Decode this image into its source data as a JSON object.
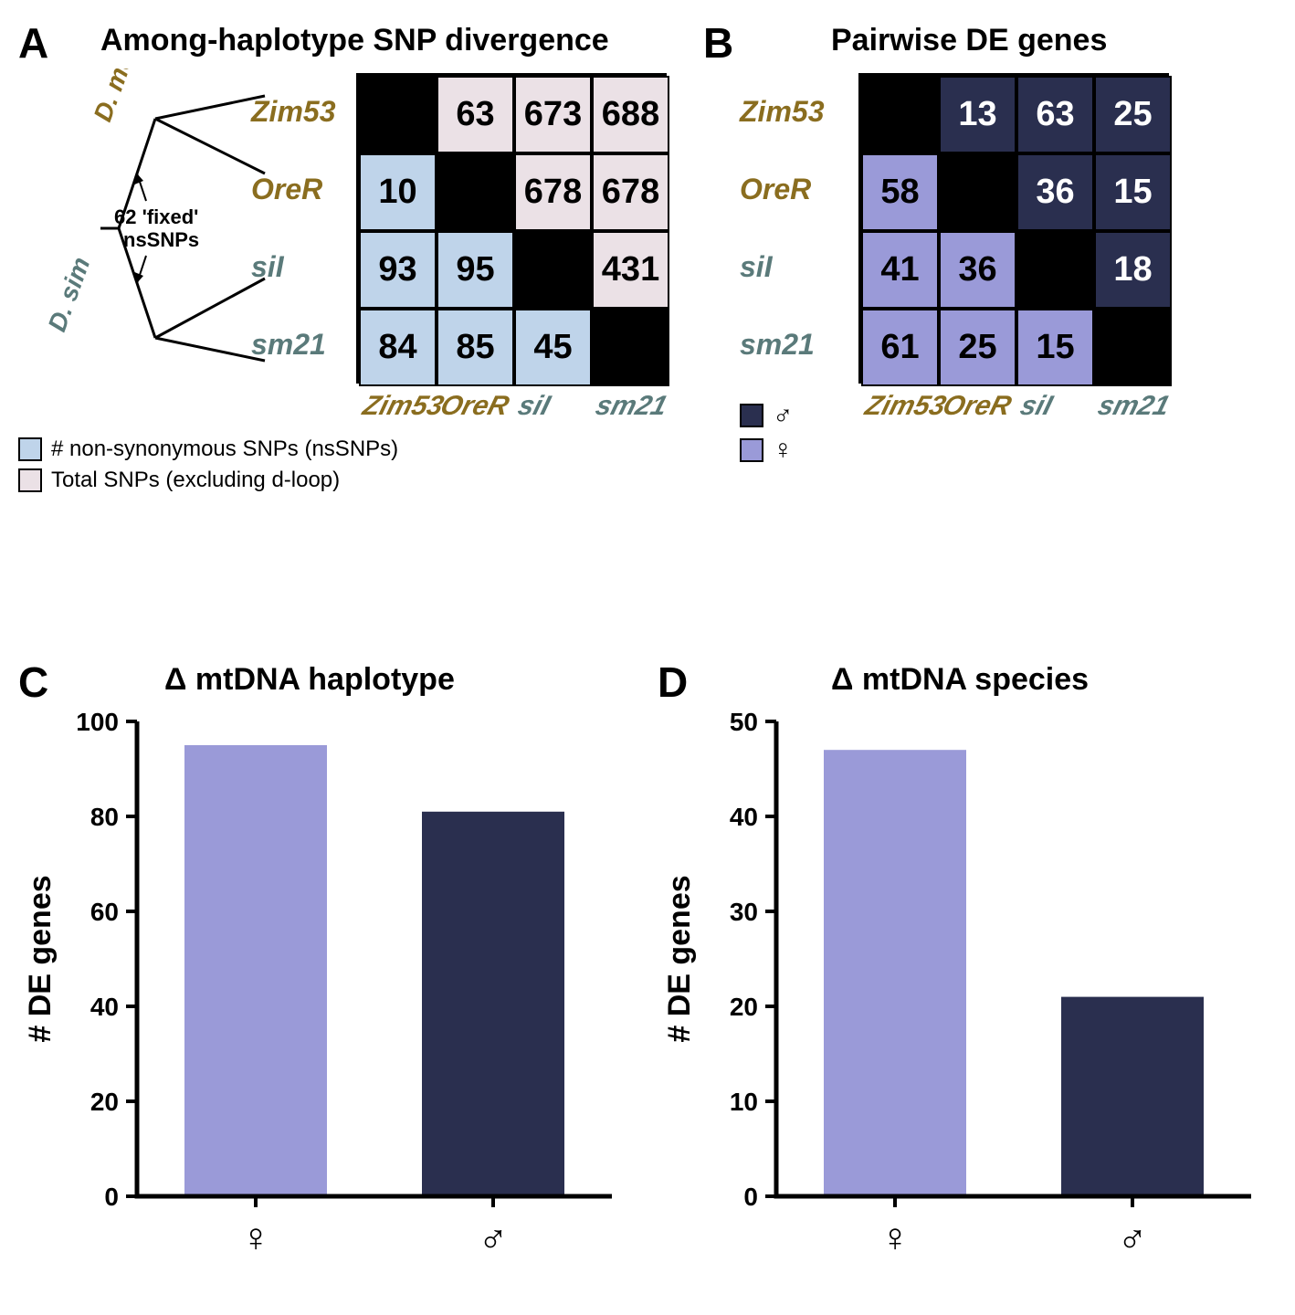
{
  "panelA": {
    "label": "A",
    "title": "Among-haplotype SNP divergence",
    "row_labels": [
      "Zim53",
      "OreR",
      "siI",
      "sm21"
    ],
    "col_labels": [
      "Zim53",
      "OreR",
      "siI",
      "sm21"
    ],
    "label_colors": [
      "#8a6d1f",
      "#8a6d1f",
      "#5a7a7a",
      "#5a7a7a"
    ],
    "upper_values": [
      [
        "",
        "63",
        "673",
        "688"
      ],
      [
        "",
        "",
        "678",
        "678"
      ],
      [
        "",
        "",
        "",
        "431"
      ],
      [
        "",
        "",
        "",
        ""
      ]
    ],
    "lower_values": [
      [
        "",
        "",
        "",
        ""
      ],
      [
        "10",
        "",
        "",
        ""
      ],
      [
        "93",
        "95",
        "",
        ""
      ],
      [
        "84",
        "85",
        "45",
        ""
      ]
    ],
    "upper_color": "#ebe1e6",
    "lower_color": "#bfd4ea",
    "diagonal_color": "#000000",
    "cell_text_color": "#000000",
    "species_labels": [
      "D. mel",
      "D. sim"
    ],
    "species_colors": [
      "#8a6d1f",
      "#5a7a7a"
    ],
    "tree_note_line1": "62 'fixed'",
    "tree_note_line2": "nsSNPs",
    "legend_lower": "# non-synonymous SNPs (nsSNPs)",
    "legend_upper": "Total SNPs (excluding d-loop)"
  },
  "panelB": {
    "label": "B",
    "title": "Pairwise DE genes",
    "row_labels": [
      "Zim53",
      "OreR",
      "siI",
      "sm21"
    ],
    "col_labels": [
      "Zim53",
      "OreR",
      "siI",
      "sm21"
    ],
    "label_colors": [
      "#8a6d1f",
      "#8a6d1f",
      "#5a7a7a",
      "#5a7a7a"
    ],
    "upper_values": [
      [
        "",
        "13",
        "63",
        "25"
      ],
      [
        "",
        "",
        "36",
        "15"
      ],
      [
        "",
        "",
        "",
        "18"
      ],
      [
        "",
        "",
        "",
        ""
      ]
    ],
    "lower_values": [
      [
        "",
        "",
        "",
        ""
      ],
      [
        "58",
        "",
        "",
        ""
      ],
      [
        "41",
        "36",
        "",
        ""
      ],
      [
        "61",
        "25",
        "15",
        ""
      ]
    ],
    "upper_color": "#2a2f4f",
    "lower_color": "#9a9ad8",
    "diagonal_color": "#000000",
    "upper_text_color": "#ffffff",
    "lower_text_color": "#000000",
    "legend_male_color": "#2a2f4f",
    "legend_female_color": "#9a9ad8",
    "legend_male_symbol": "♂",
    "legend_female_symbol": "♀"
  },
  "panelC": {
    "label": "C",
    "title": "Δ mtDNA haplotype",
    "ylabel": "# DE genes",
    "ylim": [
      0,
      100
    ],
    "ytick_step": 20,
    "categories": [
      "♀",
      "♂"
    ],
    "values": [
      95,
      81
    ],
    "bar_colors": [
      "#9a9ad8",
      "#2a2f4f"
    ],
    "bar_width": 0.6,
    "axis_color": "#000000"
  },
  "panelD": {
    "label": "D",
    "title": "Δ mtDNA species",
    "ylabel": "# DE genes",
    "ylim": [
      0,
      50
    ],
    "ytick_step": 10,
    "categories": [
      "♀",
      "♂"
    ],
    "values": [
      47,
      21
    ],
    "bar_colors": [
      "#9a9ad8",
      "#2a2f4f"
    ],
    "bar_width": 0.6,
    "axis_color": "#000000"
  },
  "layout": {
    "background": "#ffffff",
    "cell_size": 85,
    "cell_border": "#000000"
  }
}
